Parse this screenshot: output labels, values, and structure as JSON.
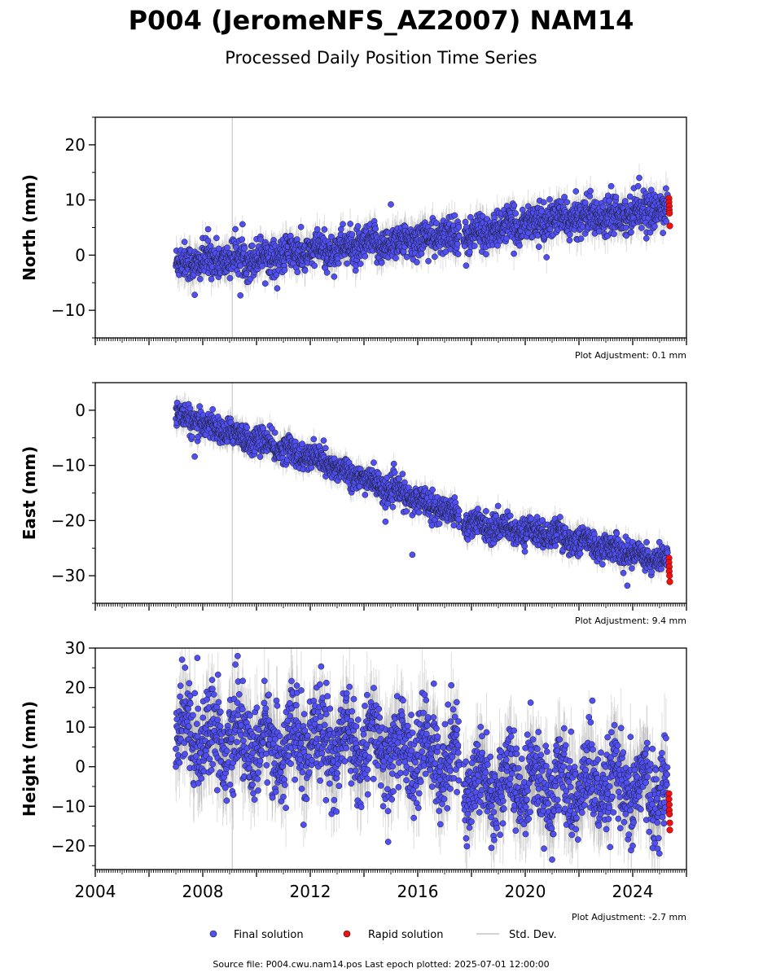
{
  "title": "P004 (JeromeNFS_AZ2007) NAM14",
  "subtitle": "Processed Daily Position Time Series",
  "legend": {
    "final": "Final solution",
    "rapid": "Rapid solution",
    "std": "Std. Dev."
  },
  "footer": "Source file: P004.cwu.nam14.pos  Last epoch plotted: 2025-07-01 12:00:00",
  "colors": {
    "final_fill": "#4f4ff5",
    "final_edge": "#1a1a1a",
    "rapid_fill": "#ee1111",
    "std_dev": "#d3d3d3",
    "vline": "#d3d3d3"
  },
  "chart_data": [
    {
      "type": "scatter",
      "ylabel": "North (mm)",
      "ylim": [
        -15,
        25
      ],
      "yticks": [
        20,
        10,
        0,
        -10
      ],
      "ytick_labels": [
        "20",
        "10",
        "0",
        "−10"
      ],
      "xlim": [
        2004,
        2026
      ],
      "vline_x": 2009.1,
      "note": "Plot Adjustment: 0.1 mm",
      "final_trend": [
        [
          2007.0,
          -1.5
        ],
        [
          2011.0,
          0.0
        ],
        [
          2015.0,
          2.2
        ],
        [
          2017.55,
          3.8
        ],
        [
          2017.7,
          3.3
        ],
        [
          2020.0,
          5.8
        ],
        [
          2025.3,
          8.5
        ]
      ],
      "final_scatter": 1.6,
      "final_range": [
        2007.0,
        2025.3
      ],
      "gap": [
        2017.55,
        2017.7
      ],
      "final_outliers": [
        [
          2015.0,
          9.2
        ],
        [
          2023.2,
          12.5
        ],
        [
          2024.2,
          12.5
        ],
        [
          2008.2,
          4.7
        ],
        [
          2009.4,
          -7.3
        ],
        [
          2007.7,
          -7.2
        ],
        [
          2017.8,
          -1.9
        ]
      ],
      "rapid": [
        [
          2025.35,
          10.3
        ],
        [
          2025.35,
          9.6
        ],
        [
          2025.36,
          8.9
        ],
        [
          2025.36,
          8.2
        ],
        [
          2025.37,
          7.6
        ],
        [
          2025.38,
          5.3
        ]
      ]
    },
    {
      "type": "scatter",
      "ylabel": "East (mm)",
      "ylim": [
        -35,
        5
      ],
      "yticks": [
        0,
        -10,
        -20,
        -30
      ],
      "ytick_labels": [
        "0",
        "−10",
        "−20",
        "−30"
      ],
      "xlim": [
        2004,
        2026
      ],
      "vline_x": 2009.1,
      "note": "Plot Adjustment: 9.4 mm",
      "final_trend": [
        [
          2007.0,
          -1.0
        ],
        [
          2009.0,
          -4.0
        ],
        [
          2012.0,
          -8.5
        ],
        [
          2015.0,
          -14.5
        ],
        [
          2017.55,
          -19.0
        ],
        [
          2017.7,
          -20.5
        ],
        [
          2021.0,
          -22.5
        ],
        [
          2025.3,
          -27.5
        ]
      ],
      "final_scatter": 1.2,
      "final_range": [
        2007.0,
        2025.3
      ],
      "gap": [
        2017.55,
        2017.7
      ],
      "final_outliers": [
        [
          2015.8,
          -26.2
        ],
        [
          2007.7,
          -8.4
        ],
        [
          2023.8,
          -31.8
        ],
        [
          2012.5,
          -5.5
        ],
        [
          2014.8,
          -20.2
        ]
      ],
      "rapid": [
        [
          2025.35,
          -26.8
        ],
        [
          2025.35,
          -27.6
        ],
        [
          2025.36,
          -28.4
        ],
        [
          2025.36,
          -29.2
        ],
        [
          2025.37,
          -30.0
        ],
        [
          2025.38,
          -31.1
        ]
      ]
    },
    {
      "type": "scatter",
      "ylabel": "Height (mm)",
      "ylim": [
        -26,
        30
      ],
      "yticks": [
        30,
        20,
        10,
        0,
        -10,
        -20
      ],
      "ytick_labels": [
        "30",
        "20",
        "10",
        "0",
        "−10",
        "−20"
      ],
      "xlim": [
        2004,
        2026
      ],
      "xticks": [
        2004,
        2008,
        2012,
        2016,
        2020,
        2024
      ],
      "xtick_labels": [
        "2004",
        "2008",
        "2012",
        "2016",
        "2020",
        "2024"
      ],
      "vline_x": 2009.1,
      "note": "Plot Adjustment: -2.7 mm",
      "final_trend": [
        [
          2007.0,
          10.0
        ],
        [
          2010.0,
          5.0
        ],
        [
          2013.0,
          6.0
        ],
        [
          2017.55,
          2.0
        ],
        [
          2017.7,
          -4.0
        ],
        [
          2025.3,
          -6.0
        ]
      ],
      "final_scatter": 5.5,
      "final_range": [
        2007.0,
        2025.3
      ],
      "gap": [
        2017.55,
        2017.7
      ],
      "final_outliers": [
        [
          2007.8,
          27.5
        ],
        [
          2012.6,
          21.2
        ],
        [
          2016.6,
          21.0
        ],
        [
          2021.0,
          -23.5
        ],
        [
          2014.9,
          -19.0
        ],
        [
          2020.2,
          16.2
        ],
        [
          2022.5,
          16.7
        ],
        [
          2024.0,
          -20.0
        ],
        [
          2007.0,
          0.0
        ]
      ],
      "rapid": [
        [
          2025.35,
          -6.8
        ],
        [
          2025.35,
          -8.2
        ],
        [
          2025.36,
          -9.6
        ],
        [
          2025.36,
          -11.0
        ],
        [
          2025.37,
          -12.0
        ],
        [
          2025.38,
          -14.2
        ],
        [
          2025.38,
          -16.0
        ]
      ]
    }
  ]
}
